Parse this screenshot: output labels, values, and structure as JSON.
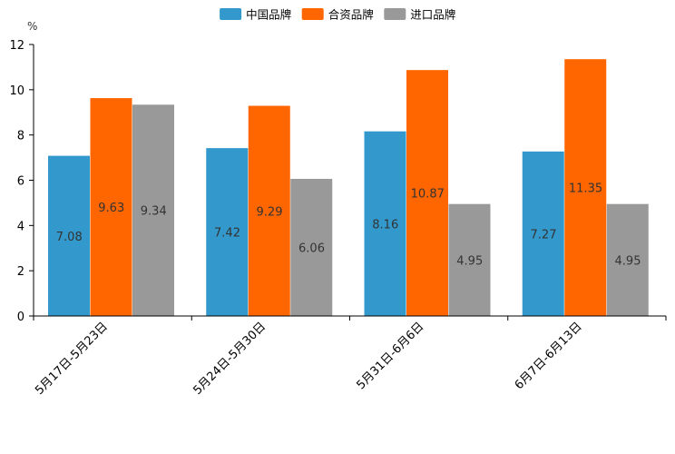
{
  "chart_data": {
    "type": "bar",
    "title": "",
    "unit_label": "%",
    "xlabel": "",
    "ylabel": "%",
    "ylim": [
      0,
      12
    ],
    "yticks": [
      0,
      2,
      4,
      6,
      8,
      10,
      12
    ],
    "grid": false,
    "legend_position": "top-center",
    "categories": [
      "5月17日-5月23日",
      "5月24日-5月30日",
      "5月31日-6月6日",
      "6月7日-6月13日"
    ],
    "series": [
      {
        "name": "中国品牌",
        "color": "#3399cc",
        "values": [
          7.08,
          7.42,
          8.16,
          7.27
        ]
      },
      {
        "name": "合资品牌",
        "color": "#ff6600",
        "values": [
          9.63,
          9.29,
          10.87,
          11.35
        ]
      },
      {
        "name": "进口品牌",
        "color": "#999999",
        "values": [
          9.34,
          6.06,
          4.95,
          4.95
        ]
      }
    ]
  }
}
